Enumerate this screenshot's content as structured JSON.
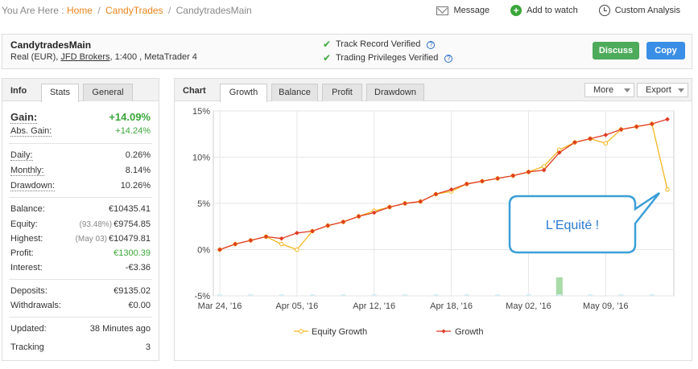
{
  "breadcrumb": {
    "prefix": "You Are Here :",
    "home": "Home",
    "section": "CandyTrades",
    "current": "CandytradesMain",
    "separator": "/"
  },
  "actions": {
    "message": "Message",
    "add_to_watch": "Add to watch",
    "custom_analysis": "Custom Analysis"
  },
  "account": {
    "name": "CandytradesMain",
    "type": "Real (EUR),",
    "broker": "JFD Brokers",
    "details": ", 1:400 , MetaTrader 4",
    "track_record": "Track Record Verified",
    "trading_privileges": "Trading Privileges Verified",
    "help_icon": "?",
    "discuss": "Discuss",
    "copy": "Copy"
  },
  "info": {
    "title": "Info",
    "tabs": [
      "Stats",
      "General"
    ],
    "gain_label": "Gain:",
    "gain_value": "+14.09%",
    "abs_gain_label": "Abs. Gain:",
    "abs_gain_value": "+14.24%",
    "daily_label": "Daily:",
    "daily_value": "0.26%",
    "monthly_label": "Monthly:",
    "monthly_value": "8.14%",
    "drawdown_label": "Drawdown:",
    "drawdown_value": "10.26%",
    "balance_label": "Balance:",
    "balance_value": "€10435.41",
    "equity_label": "Equity:",
    "equity_pct": "(93.48%)",
    "equity_value": "€9754.85",
    "highest_label": "Highest:",
    "highest_date": "(May 03)",
    "highest_value": "€10479.81",
    "profit_label": "Profit:",
    "profit_value": "€1300.39",
    "interest_label": "Interest:",
    "interest_value": "-€3.36",
    "deposits_label": "Deposits:",
    "deposits_value": "€9135.02",
    "withdrawals_label": "Withdrawals:",
    "withdrawals_value": "€0.00",
    "updated_label": "Updated:",
    "updated_value": "38 Minutes ago",
    "tracking_label": "Tracking",
    "tracking_value": "3"
  },
  "chart_panel": {
    "title": "Chart",
    "tabs": [
      "Growth",
      "Balance",
      "Profit",
      "Drawdown"
    ],
    "more": "More",
    "export": "Export",
    "callout": "L'Equité !"
  },
  "colors": {
    "growth": "#e03b24",
    "equity": "#f2b61f",
    "positive": "#3aa63a",
    "link": "#e8841b",
    "discuss": "#4dab5b",
    "copy": "#3a8ee6",
    "callout_border": "#3b9fd8",
    "callout_text": "#2a78d0"
  },
  "chart_data": {
    "type": "line",
    "ylim": [
      -5,
      15
    ],
    "yticks": [
      -5,
      0,
      5,
      10,
      15
    ],
    "ytick_labels": [
      "-5%",
      "0%",
      "5%",
      "10%",
      "15%"
    ],
    "xtick_labels": [
      "Mar 24, '16",
      "Apr 05, '16",
      "Apr 12, '16",
      "Apr 18, '16",
      "May 02, '16",
      "May 09, '16"
    ],
    "xtick_index": [
      0,
      5,
      10,
      15,
      20,
      25
    ],
    "grid": true,
    "legend": "bottom",
    "series": [
      {
        "name": "Equity Growth",
        "color": "#f2b61f",
        "values": [
          0.0,
          0.6,
          1.0,
          1.4,
          0.6,
          0.0,
          2.0,
          2.6,
          3.0,
          3.6,
          4.2,
          4.6,
          5.0,
          5.2,
          6.0,
          6.3,
          7.1,
          7.4,
          7.7,
          8.0,
          8.4,
          9.0,
          10.8,
          11.6,
          12.0,
          11.5,
          13.0,
          13.3,
          13.6,
          6.5
        ]
      },
      {
        "name": "Growth",
        "color": "#e03b24",
        "values": [
          0.0,
          0.6,
          1.0,
          1.4,
          1.2,
          1.8,
          2.0,
          2.6,
          3.0,
          3.6,
          4.0,
          4.6,
          5.0,
          5.2,
          6.0,
          6.5,
          7.1,
          7.4,
          7.7,
          8.0,
          8.4,
          8.6,
          10.5,
          11.6,
          12.0,
          12.4,
          13.0,
          13.3,
          13.6,
          14.1
        ]
      }
    ],
    "volume_bars": [
      {
        "index": 22,
        "value": 2.0
      }
    ]
  }
}
